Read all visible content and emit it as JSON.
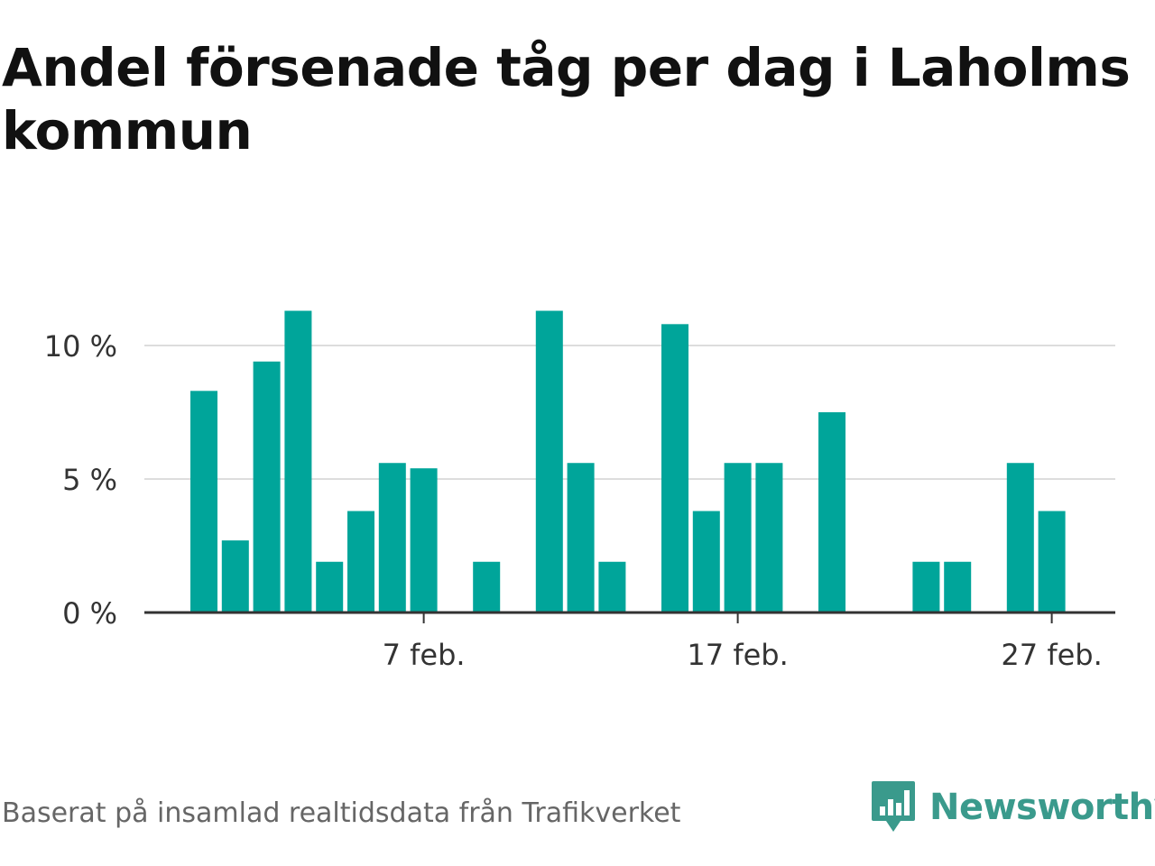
{
  "title": "Andel försenade tåg per dag i Laholms kommun",
  "source": "Baserat på insamlad realtidsdata från Trafikverket",
  "brand": {
    "name": "Newsworthy",
    "logo_icon": "newsworthy-chart-bubble-icon"
  },
  "colors": {
    "bar": "#00a59a",
    "grid": "#dddddd",
    "axis": "#333333",
    "brand": "#3a9a8c"
  },
  "chart_data": {
    "type": "bar",
    "title": "Andel försenade tåg per dag i Laholms kommun",
    "xlabel": "",
    "ylabel": "",
    "ylim": [
      0,
      12
    ],
    "x_range": [
      "2024-01-30",
      "2024-03-01"
    ],
    "y_ticks": [
      0,
      5,
      10
    ],
    "y_tick_labels": [
      "0 %",
      "5 %",
      "10 %"
    ],
    "x_ticks": [
      "2024-02-07",
      "2024-02-17",
      "2024-02-27"
    ],
    "x_tick_labels": [
      "7 feb.",
      "17 feb.",
      "27 feb."
    ],
    "grid": true,
    "categories": [
      "2024-01-31",
      "2024-02-01",
      "2024-02-02",
      "2024-02-03",
      "2024-02-04",
      "2024-02-05",
      "2024-02-06",
      "2024-02-07",
      "2024-02-08",
      "2024-02-09",
      "2024-02-10",
      "2024-02-11",
      "2024-02-12",
      "2024-02-13",
      "2024-02-14",
      "2024-02-15",
      "2024-02-16",
      "2024-02-17",
      "2024-02-18",
      "2024-02-19",
      "2024-02-20",
      "2024-02-21",
      "2024-02-22",
      "2024-02-23",
      "2024-02-24",
      "2024-02-25",
      "2024-02-26",
      "2024-02-27",
      "2024-02-28"
    ],
    "values": [
      8.3,
      2.7,
      9.4,
      11.3,
      1.9,
      3.8,
      5.6,
      5.4,
      0,
      1.9,
      0,
      11.3,
      5.6,
      1.9,
      0,
      10.8,
      3.8,
      5.6,
      5.6,
      0,
      7.5,
      0,
      0,
      1.9,
      1.9,
      0,
      5.6,
      3.8,
      0
    ]
  }
}
